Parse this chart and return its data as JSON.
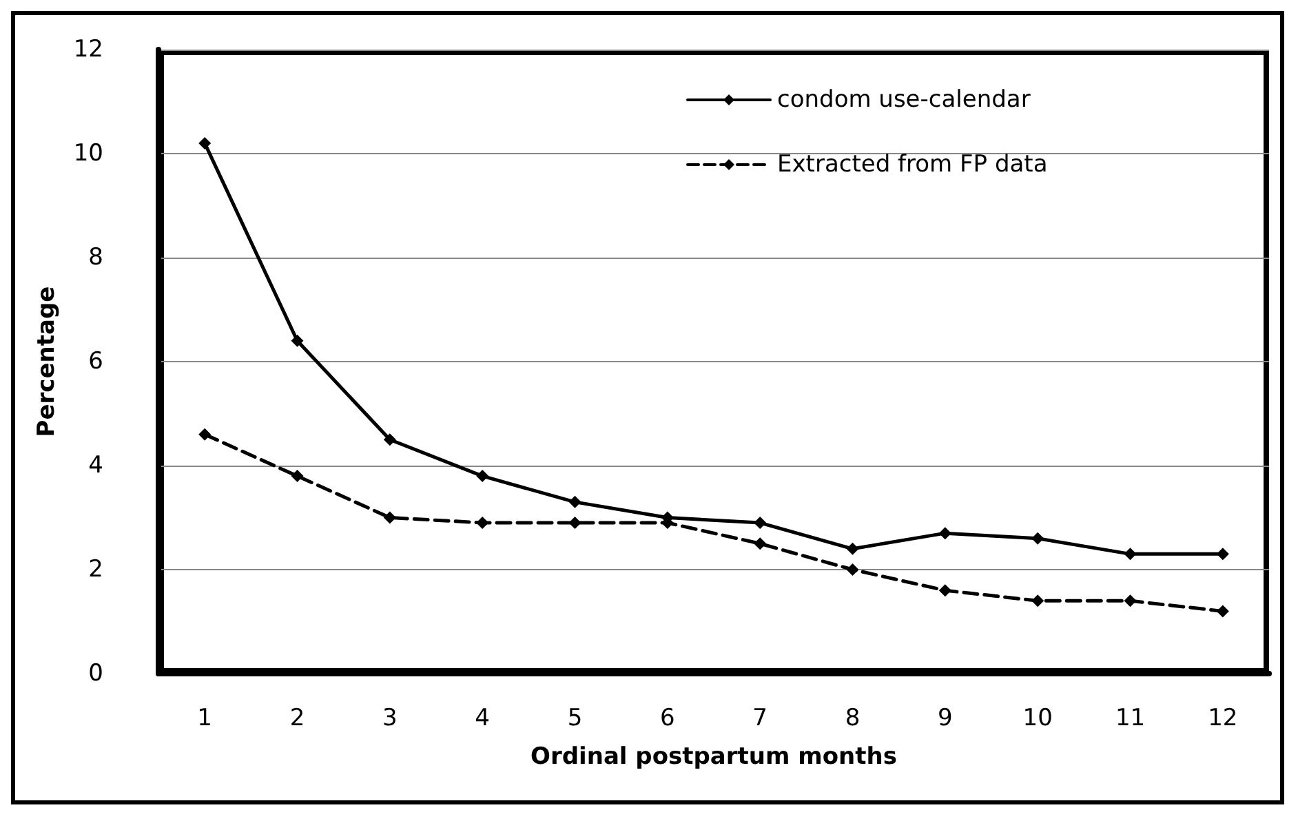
{
  "chart_data": {
    "type": "line",
    "xlabel": "Ordinal postpartum months",
    "ylabel": "Percentage",
    "categories": [
      "1",
      "2",
      "3",
      "4",
      "5",
      "6",
      "7",
      "8",
      "9",
      "10",
      "11",
      "12"
    ],
    "series": [
      {
        "name": "condom use-calendar",
        "color": "#000000",
        "line_style": "solid",
        "values": [
          10.2,
          6.4,
          4.5,
          3.8,
          3.3,
          3.0,
          2.9,
          2.4,
          2.7,
          2.6,
          2.3,
          2.3
        ]
      },
      {
        "name": "Extracted from FP data",
        "color": "#000000",
        "line_style": "dashed",
        "values": [
          4.6,
          3.8,
          3.0,
          2.9,
          2.9,
          2.9,
          2.5,
          2.0,
          1.6,
          1.4,
          1.4,
          1.2
        ]
      }
    ],
    "ylim": [
      0,
      12
    ],
    "yticks": [
      0,
      2,
      4,
      6,
      8,
      10,
      12
    ],
    "grid": "y",
    "legend": "top right",
    "marker": "diamond"
  }
}
